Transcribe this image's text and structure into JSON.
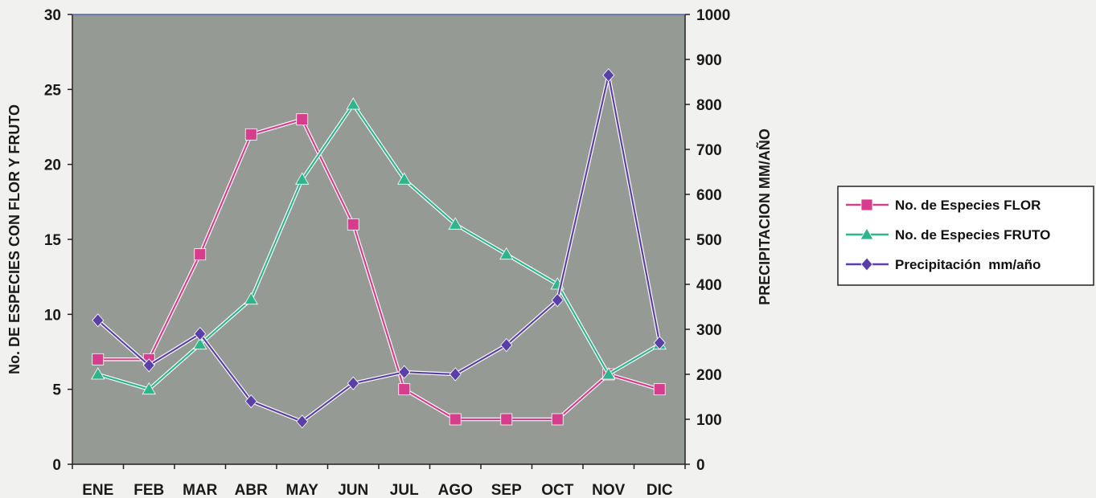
{
  "chart_data": {
    "type": "line",
    "categories": [
      "ENE",
      "FEB",
      "MAR",
      "ABR",
      "MAY",
      "JUN",
      "JUL",
      "AGO",
      "SEP",
      "OCT",
      "NOV",
      "DIC"
    ],
    "ylabel": "No. DE ESPECIES CON FLOR Y FRUTO",
    "y2label": "PRECIPITACION MM/AÑO",
    "ylim": [
      0,
      30
    ],
    "y2lim": [
      0,
      1000
    ],
    "yticks": [
      "0",
      "5",
      "10",
      "15",
      "20",
      "25",
      "30"
    ],
    "y2ticks": [
      "0",
      "100",
      "200",
      "300",
      "400",
      "500",
      "600",
      "700",
      "800",
      "900",
      "1000"
    ],
    "legend_position": "right",
    "series": [
      {
        "name": "No. de Especies FLOR",
        "axis": "left",
        "marker": "square",
        "color": "#d63d8c",
        "values": [
          7,
          7,
          14,
          22,
          23,
          16,
          5,
          3,
          3,
          3,
          6,
          5
        ]
      },
      {
        "name": "No. de Especies FRUTO",
        "axis": "left",
        "marker": "triangle",
        "color": "#2fb58c",
        "values": [
          6,
          5,
          8,
          11,
          19,
          24,
          19,
          16,
          14,
          12,
          6,
          8
        ]
      },
      {
        "name": "Precipitación  mm/año",
        "axis": "right",
        "marker": "diamond",
        "color": "#5a3fa6",
        "values": [
          320,
          220,
          290,
          140,
          95,
          180,
          205,
          200,
          265,
          365,
          865,
          270
        ]
      }
    ],
    "colors": {
      "plot_background": "#959a95",
      "page_background": "#f1f1ef"
    }
  }
}
